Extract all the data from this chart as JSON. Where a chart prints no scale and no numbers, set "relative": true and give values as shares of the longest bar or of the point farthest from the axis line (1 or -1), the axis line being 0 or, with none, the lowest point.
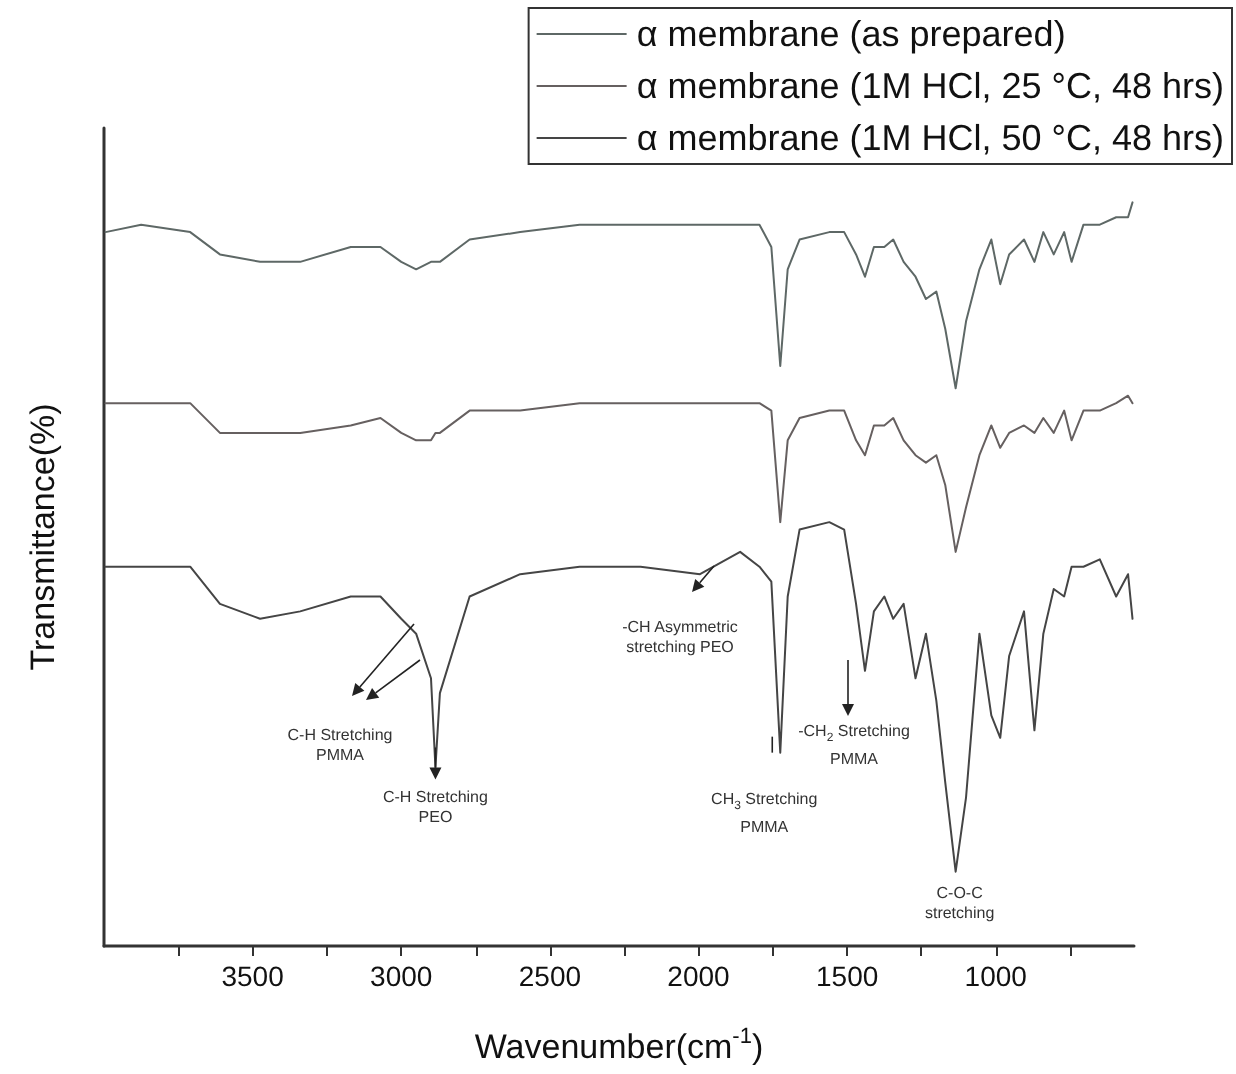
{
  "chart_data": {
    "type": "line",
    "xlabel": "Wavenumber(cm$^{-1}$)",
    "ylabel": "Transmittance(%)",
    "relative": true,
    "marker": "none",
    "legend": "top right",
    "x": [
      3995,
      3875,
      3710,
      3610,
      3475,
      3340,
      3170,
      3070,
      3000,
      2950,
      2900,
      2885,
      2870,
      2770,
      2600,
      2400,
      2195,
      1995,
      1860,
      1795,
      1755,
      1725,
      1700,
      1660,
      1560,
      1510,
      1470,
      1440,
      1410,
      1375,
      1345,
      1310,
      1270,
      1235,
      1200,
      1170,
      1135,
      1100,
      1055,
      1015,
      985,
      955,
      905,
      870,
      840,
      805,
      770,
      745,
      705,
      650,
      595,
      555,
      540
    ],
    "xlim": [
      4000,
      535
    ],
    "xticks": [
      {
        "value": 3750,
        "label": null
      },
      3500,
      {
        "value": 3250,
        "label": null
      },
      3000,
      {
        "value": 2750,
        "label": null
      },
      2500,
      {
        "value": 2250,
        "label": null
      },
      2000,
      {
        "value": 1750,
        "label": null
      },
      1500,
      {
        "value": 1250,
        "label": null
      },
      1000,
      {
        "value": 750,
        "label": null
      }
    ],
    "series": [
      {
        "name": "α membrane (as prepared)",
        "color": "#5e6866",
        "values": [
          0.96,
          0.97,
          0.96,
          0.93,
          0.92,
          0.92,
          0.94,
          0.94,
          0.92,
          0.91,
          0.92,
          0.92,
          0.92,
          0.95,
          0.96,
          0.97,
          0.97,
          0.97,
          0.97,
          0.97,
          0.94,
          0.78,
          0.91,
          0.95,
          0.96,
          0.96,
          0.93,
          0.9,
          0.94,
          0.94,
          0.95,
          0.92,
          0.9,
          0.87,
          0.88,
          0.83,
          0.75,
          0.84,
          0.91,
          0.95,
          0.89,
          0.93,
          0.95,
          0.92,
          0.96,
          0.93,
          0.96,
          0.92,
          0.97,
          0.97,
          0.98,
          0.98,
          1.0
        ]
      },
      {
        "name": "α membrane (1M HCl, 25 °C, 48 hrs)",
        "color": "#666060",
        "values": [
          0.73,
          0.73,
          0.73,
          0.69,
          0.69,
          0.69,
          0.7,
          0.71,
          0.69,
          0.68,
          0.68,
          0.69,
          0.69,
          0.72,
          0.72,
          0.73,
          0.73,
          0.73,
          0.73,
          0.73,
          0.72,
          0.57,
          0.68,
          0.71,
          0.72,
          0.72,
          0.68,
          0.66,
          0.7,
          0.7,
          0.71,
          0.68,
          0.66,
          0.65,
          0.66,
          0.62,
          0.53,
          0.59,
          0.66,
          0.7,
          0.67,
          0.69,
          0.7,
          0.69,
          0.71,
          0.69,
          0.72,
          0.68,
          0.72,
          0.72,
          0.73,
          0.74,
          0.73
        ]
      },
      {
        "name": "α membrane (1M HCl, 50 °C, 48 hrs)",
        "color": "#454545",
        "values": [
          0.51,
          0.51,
          0.51,
          0.46,
          0.44,
          0.45,
          0.47,
          0.47,
          0.44,
          0.42,
          0.36,
          0.24,
          0.34,
          0.47,
          0.5,
          0.51,
          0.51,
          0.5,
          0.53,
          0.51,
          0.49,
          0.26,
          0.47,
          0.56,
          0.57,
          0.56,
          0.46,
          0.37,
          0.45,
          0.47,
          0.44,
          0.46,
          0.36,
          0.42,
          0.33,
          0.22,
          0.1,
          0.2,
          0.42,
          0.31,
          0.28,
          0.39,
          0.45,
          0.29,
          0.42,
          0.48,
          0.47,
          0.51,
          0.51,
          0.52,
          0.47,
          0.5,
          0.44
        ]
      }
    ],
    "annotations": [
      "C-H Stretching\nPMMA",
      {
        "text": "C-H Stretching\nPEO",
        "x": 2885,
        "y": 0.24
      },
      "-CH Asymmetric\nstretching PEO",
      {
        "text": "CH$_{3}$ Stretching\nPMMA",
        "x": 1725,
        "y": 0.26
      },
      "-CH$_{2}$ Stretching\nPMMA",
      {
        "text": "C-O-C\nstretching",
        "x": 1135,
        "y": 0.1
      }
    ]
  }
}
